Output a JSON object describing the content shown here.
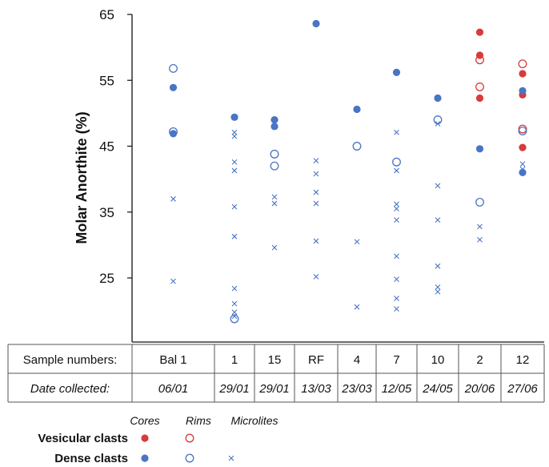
{
  "chart_data": {
    "type": "scatter",
    "ylabel": "Molar Anorthite (%)",
    "ylim": [
      15,
      65
    ],
    "yticks": [
      25,
      35,
      45,
      55,
      65
    ],
    "table": {
      "row_labels": [
        "Sample numbers:",
        "Date collected:"
      ],
      "samples": [
        "Bal 1",
        "1",
        "15",
        "RF",
        "4",
        "7",
        "10",
        "2",
        "12"
      ],
      "dates": [
        "06/01",
        "29/01",
        "29/01",
        "13/03",
        "23/03",
        "12/05",
        "24/05",
        "20/06",
        "27/06"
      ]
    },
    "legend": {
      "col_headers": [
        "Cores",
        "Rims",
        "Microlites"
      ],
      "row_labels": [
        "Vesicular clasts",
        "Dense clasts"
      ]
    },
    "colors": {
      "vesicular": "#d93a3a",
      "dense": "#4a74c4",
      "axis": "#111111"
    },
    "series": [
      {
        "name": "Vesicular clasts Cores",
        "marker": "filled",
        "color": "vesicular",
        "x": [
          "2",
          "2",
          "2",
          "12",
          "12",
          "12"
        ],
        "y": [
          62.3,
          58.8,
          52.3,
          56.0,
          52.8,
          44.8
        ]
      },
      {
        "name": "Vesicular clasts Rims",
        "marker": "open",
        "color": "vesicular",
        "x": [
          "2",
          "2",
          "12",
          "12"
        ],
        "y": [
          58.1,
          54.0,
          57.5,
          47.6
        ]
      },
      {
        "name": "Dense clasts Cores",
        "marker": "filled",
        "color": "dense",
        "x": [
          "Bal 1",
          "Bal 1",
          "1",
          "15",
          "15",
          "RF",
          "4",
          "7",
          "10",
          "2",
          "12",
          "12"
        ],
        "y": [
          53.9,
          46.9,
          49.4,
          49.0,
          48.0,
          63.6,
          50.6,
          56.2,
          52.3,
          44.6,
          53.4,
          41.0
        ]
      },
      {
        "name": "Dense clasts Rims",
        "marker": "open",
        "color": "dense",
        "x": [
          "Bal 1",
          "Bal 1",
          "1",
          "15",
          "15",
          "4",
          "7",
          "10",
          "2",
          "12"
        ],
        "y": [
          56.8,
          47.2,
          18.8,
          43.8,
          42.0,
          45.0,
          42.6,
          49.0,
          36.5,
          47.3
        ]
      },
      {
        "name": "Dense clasts Microlites",
        "marker": "x",
        "color": "dense",
        "x": [
          "Bal 1",
          "Bal 1",
          "1",
          "1",
          "1",
          "1",
          "1",
          "1",
          "1",
          "1",
          "1",
          "1",
          "15",
          "15",
          "15",
          "RF",
          "RF",
          "RF",
          "RF",
          "RF",
          "RF",
          "4",
          "4",
          "7",
          "7",
          "7",
          "7",
          "7",
          "7",
          "7",
          "7",
          "7",
          "10",
          "10",
          "10",
          "10",
          "10",
          "10",
          "2",
          "2",
          "12",
          "12"
        ],
        "y": [
          37.0,
          24.5,
          47.1,
          46.5,
          42.6,
          41.3,
          35.8,
          31.3,
          23.4,
          21.1,
          19.8,
          19.2,
          37.3,
          36.3,
          29.6,
          42.8,
          40.8,
          38.0,
          36.3,
          30.6,
          25.2,
          30.5,
          20.6,
          47.1,
          41.3,
          36.2,
          35.5,
          33.8,
          28.3,
          24.8,
          21.9,
          20.3,
          48.4,
          39.0,
          33.8,
          26.8,
          23.6,
          22.9,
          32.8,
          30.8,
          42.3,
          41.5
        ]
      }
    ]
  }
}
